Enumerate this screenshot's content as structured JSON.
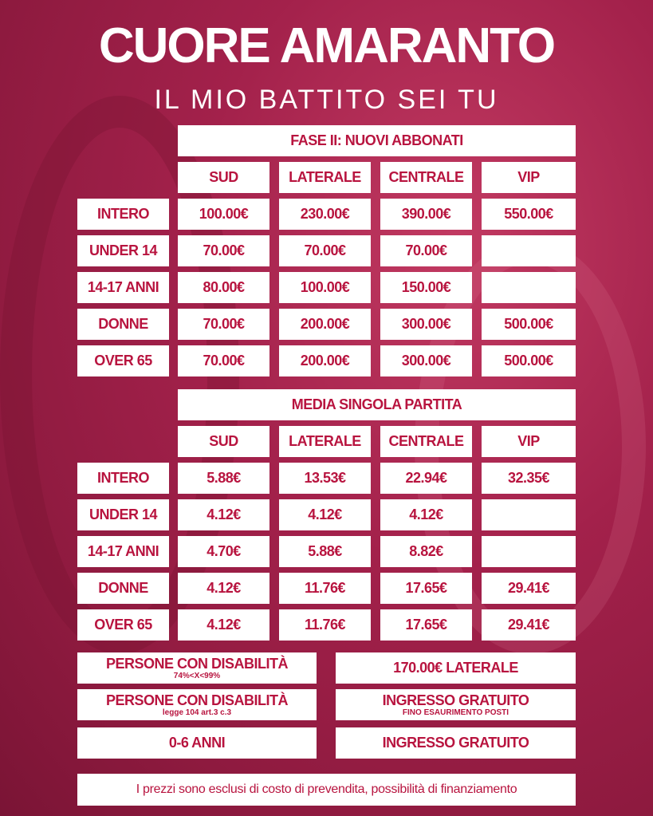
{
  "title": "CUORE AMARANTO",
  "subtitle": "IL MIO BATTITO SEI TU",
  "columns": [
    "SUD",
    "LATERALE",
    "CENTRALE",
    "VIP"
  ],
  "sections": [
    {
      "header": "FASE II: NUOVI ABBONATI",
      "rows": [
        {
          "label": "INTERO",
          "values": [
            "100.00€",
            "230.00€",
            "390.00€",
            "550.00€"
          ]
        },
        {
          "label": "UNDER 14",
          "values": [
            "70.00€",
            "70.00€",
            "70.00€",
            ""
          ]
        },
        {
          "label": "14-17 ANNI",
          "values": [
            "80.00€",
            "100.00€",
            "150.00€",
            ""
          ]
        },
        {
          "label": "DONNE",
          "values": [
            "70.00€",
            "200.00€",
            "300.00€",
            "500.00€"
          ]
        },
        {
          "label": "OVER 65",
          "values": [
            "70.00€",
            "200.00€",
            "300.00€",
            "500.00€"
          ]
        }
      ]
    },
    {
      "header": "MEDIA SINGOLA PARTITA",
      "rows": [
        {
          "label": "INTERO",
          "values": [
            "5.88€",
            "13.53€",
            "22.94€",
            "32.35€"
          ]
        },
        {
          "label": "UNDER 14",
          "values": [
            "4.12€",
            "4.12€",
            "4.12€",
            ""
          ]
        },
        {
          "label": "14-17 ANNI",
          "values": [
            "4.70€",
            "5.88€",
            "8.82€",
            ""
          ]
        },
        {
          "label": "DONNE",
          "values": [
            "4.12€",
            "11.76€",
            "17.65€",
            "29.41€"
          ]
        },
        {
          "label": "OVER 65",
          "values": [
            "4.12€",
            "11.76€",
            "17.65€",
            "29.41€"
          ]
        }
      ]
    }
  ],
  "special": [
    {
      "label": "PERSONE CON DISABILITÀ",
      "label_sub": "74%<X<99%",
      "price": "170.00€ LATERALE",
      "price_sub": ""
    },
    {
      "label": "PERSONE CON DISABILITÀ",
      "label_sub": "legge 104 art.3 c.3",
      "price": "INGRESSO GRATUITO",
      "price_sub": "FINO ESAURIMENTO POSTI"
    },
    {
      "label": "0-6 ANNI",
      "label_sub": "",
      "price": "INGRESSO GRATUITO",
      "price_sub": ""
    }
  ],
  "footer_note": "I prezzi sono esclusi di costo di prevendita, possibilità di finanziamento",
  "colors": {
    "brand": "#b8143f",
    "background": "#9e1c44",
    "cell": "#ffffff"
  }
}
